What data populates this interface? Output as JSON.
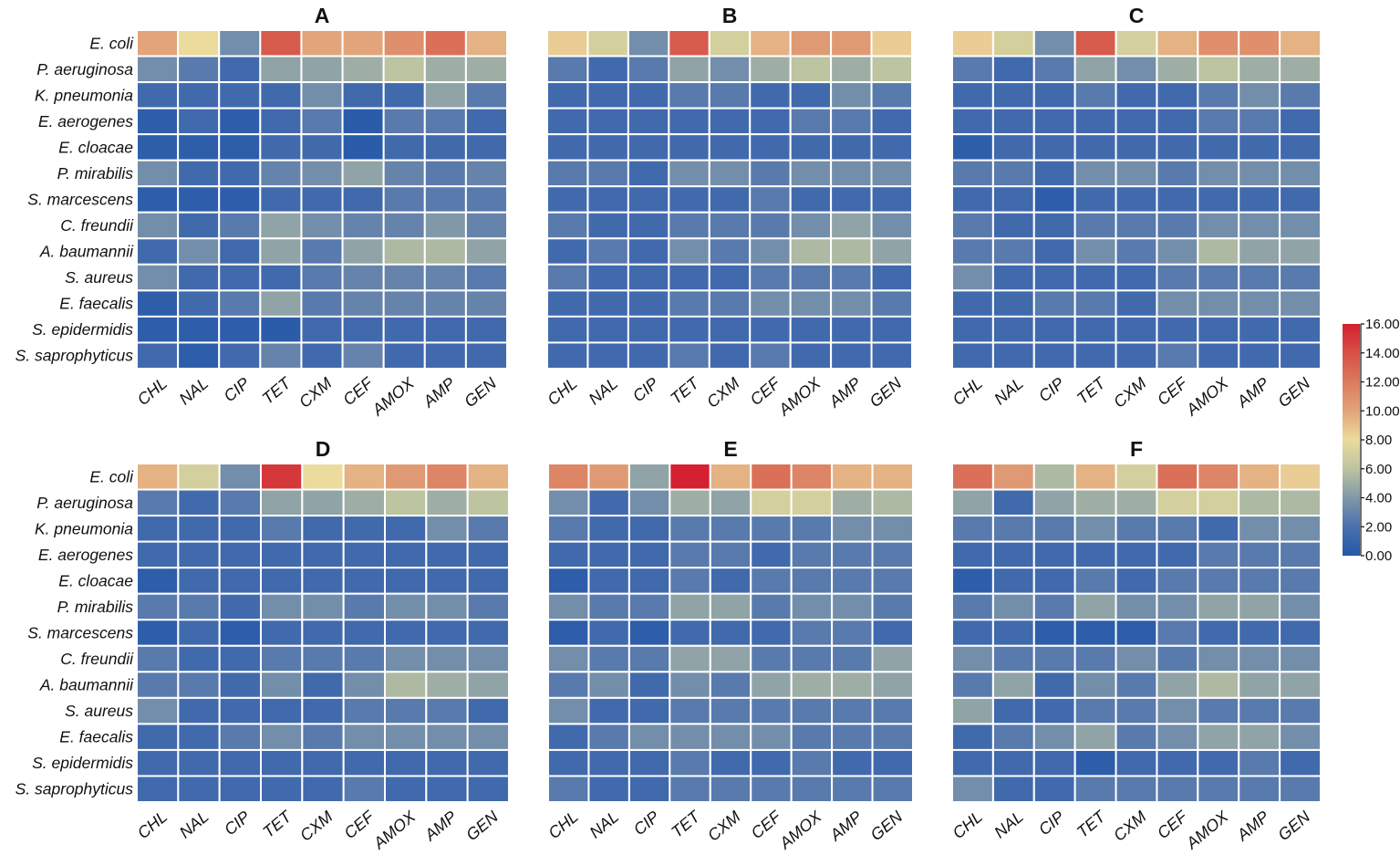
{
  "chart_data": {
    "type": "heatmap",
    "rows": [
      "E. coli",
      "P. aeruginosa",
      "K. pneumonia",
      "E. aerogenes",
      "E. cloacae",
      "P. mirabilis",
      "S. marcescens",
      "C. freundii",
      "A. baumannii",
      "S. aureus",
      "E. faecalis",
      "S. epidermidis",
      "S. saprophyticus"
    ],
    "columns": [
      "CHL",
      "NAL",
      "CIP",
      "TET",
      "CXM",
      "CEF",
      "AMOX",
      "AMP",
      "GEN"
    ],
    "colorbar": {
      "range": [
        0,
        16
      ],
      "ticks": [
        "16.00",
        "14.00",
        "12.00",
        "10.00",
        "8.00",
        "6.00",
        "4.00",
        "2.00",
        "0.00"
      ],
      "colors": [
        "#2458a8",
        "#4a70ae",
        "#8198a8",
        "#bcc4a0",
        "#ebdb9c",
        "#e2a47a",
        "#db7a5e",
        "#d65046",
        "#d42030"
      ]
    },
    "panels": [
      {
        "title": "A",
        "values": [
          [
            10,
            8,
            3.5,
            13.5,
            10,
            10,
            11,
            12.5,
            9.5
          ],
          [
            3.5,
            2.5,
            1.5,
            4.5,
            4.5,
            5,
            6,
            5,
            5
          ],
          [
            1.5,
            1.5,
            1.5,
            1.5,
            3.5,
            1.5,
            1.5,
            4.5,
            2.5
          ],
          [
            0.5,
            1.5,
            0.5,
            1.5,
            2.5,
            0.3,
            2.5,
            2.5,
            1.5
          ],
          [
            0.5,
            0.5,
            0.5,
            1.5,
            1.5,
            0.3,
            1.5,
            1.5,
            1.5
          ],
          [
            3.5,
            1.5,
            1.5,
            3,
            3.5,
            4.5,
            3,
            2.5,
            3
          ],
          [
            0.5,
            0.5,
            0.5,
            1.5,
            1.5,
            1.5,
            2.5,
            2.5,
            2.5
          ],
          [
            3.5,
            1.5,
            2.5,
            4.5,
            3.5,
            3,
            3,
            4,
            3
          ],
          [
            1.5,
            3.5,
            1.5,
            4.5,
            2.5,
            4.5,
            5.5,
            5.5,
            4.5
          ],
          [
            3.5,
            1.5,
            1.5,
            1.5,
            2.5,
            3,
            3,
            3,
            2.5
          ],
          [
            0.5,
            1.5,
            2.5,
            4.5,
            2.5,
            3,
            3,
            3,
            3
          ],
          [
            0.5,
            0.5,
            0.5,
            0.3,
            1.5,
            1.5,
            1.5,
            1.5,
            1.5
          ],
          [
            1.5,
            0.5,
            1.5,
            3,
            1.5,
            3,
            1.5,
            1.5,
            1.5
          ]
        ]
      },
      {
        "title": "B",
        "values": [
          [
            8.5,
            7,
            3.5,
            13.5,
            7,
            9.5,
            10.5,
            10.5,
            8.5
          ],
          [
            2.5,
            1.5,
            2.5,
            4.5,
            3.5,
            5,
            6,
            5,
            6
          ],
          [
            1.5,
            1.5,
            1.5,
            2.5,
            2.5,
            1.5,
            1.5,
            3.5,
            2.5
          ],
          [
            1.5,
            1.5,
            1.5,
            1.5,
            1.5,
            1.5,
            2.5,
            2.5,
            1.5
          ],
          [
            1.5,
            1.5,
            1.5,
            1.5,
            1.5,
            1.5,
            1.5,
            1.5,
            1.5
          ],
          [
            2.5,
            2.5,
            1.5,
            3.5,
            3.5,
            2.5,
            3.5,
            3.5,
            3.5
          ],
          [
            1.5,
            1.5,
            1.5,
            1.5,
            1.5,
            2.5,
            1.5,
            1.5,
            1.5
          ],
          [
            2.5,
            1.5,
            1.5,
            2.5,
            2.5,
            2.5,
            3.5,
            4.5,
            3.5
          ],
          [
            1.5,
            2.5,
            1.5,
            3.5,
            2.5,
            3.5,
            5.5,
            5.5,
            4.5
          ],
          [
            2.5,
            1.5,
            1.5,
            1.5,
            1.5,
            2.5,
            2.5,
            2.5,
            1.5
          ],
          [
            1.5,
            1.5,
            1.5,
            2.5,
            2.5,
            3.5,
            3.5,
            3.5,
            2.5
          ],
          [
            1.5,
            1.5,
            1.5,
            1.5,
            1.5,
            1.5,
            1.5,
            1.5,
            1.5
          ],
          [
            1.5,
            1.5,
            1.5,
            2.5,
            1.5,
            2.5,
            1.5,
            1.5,
            1.5
          ]
        ]
      },
      {
        "title": "C",
        "values": [
          [
            8.5,
            7,
            3.5,
            13.5,
            7,
            9.5,
            11,
            11,
            9.5
          ],
          [
            2.5,
            1.5,
            2.5,
            4.5,
            3.5,
            5,
            6,
            5,
            5
          ],
          [
            1.5,
            1.5,
            1.5,
            2.5,
            1.5,
            1.5,
            2.5,
            3.5,
            2.5
          ],
          [
            1.5,
            1.5,
            1.5,
            1.5,
            1.5,
            1.5,
            2.5,
            2.5,
            1.5
          ],
          [
            0.5,
            1.5,
            1.5,
            1.5,
            1.5,
            1.5,
            1.5,
            1.5,
            1.5
          ],
          [
            2.5,
            2.5,
            1.5,
            3.5,
            3.5,
            2.5,
            3.5,
            3.5,
            3.5
          ],
          [
            1.5,
            1.5,
            0.5,
            1.5,
            1.5,
            1.5,
            1.5,
            1.5,
            1.5
          ],
          [
            2.5,
            1.5,
            1.5,
            2.5,
            2.5,
            2.5,
            3.5,
            3.5,
            3.5
          ],
          [
            2.5,
            2.5,
            1.5,
            3.5,
            2.5,
            3.5,
            5.5,
            4.5,
            4.5
          ],
          [
            3.5,
            1.5,
            1.5,
            1.5,
            1.5,
            2.5,
            2.5,
            2.5,
            2.5
          ],
          [
            1.5,
            1.5,
            2.5,
            2.5,
            1.5,
            3.5,
            3.5,
            3.5,
            3.5
          ],
          [
            1.5,
            1.5,
            1.5,
            1.5,
            1.5,
            1.5,
            1.5,
            1.5,
            1.5
          ],
          [
            1.5,
            1.5,
            1.5,
            1.5,
            1.5,
            2.5,
            1.5,
            1.5,
            1.5
          ]
        ]
      },
      {
        "title": "D",
        "values": [
          [
            9.5,
            7,
            3.5,
            15,
            8,
            9.5,
            10.5,
            11.5,
            9.5
          ],
          [
            2.5,
            1.5,
            2.5,
            4.5,
            4.5,
            5,
            6,
            5,
            6
          ],
          [
            1.5,
            1.5,
            1.5,
            2.5,
            1.5,
            1.5,
            1.5,
            3.5,
            2.5
          ],
          [
            1.5,
            1.5,
            1.5,
            1.5,
            1.5,
            1.5,
            1.5,
            1.5,
            1.5
          ],
          [
            0.5,
            1.5,
            1.5,
            1.5,
            1.5,
            1.5,
            1.5,
            1.5,
            1.5
          ],
          [
            2.5,
            2.5,
            1.5,
            3.5,
            3.5,
            2.5,
            3.5,
            3.5,
            2.5
          ],
          [
            0.5,
            1.5,
            0.5,
            1.5,
            1.5,
            1.5,
            1.5,
            1.5,
            1.5
          ],
          [
            2.5,
            1.5,
            1.5,
            2.5,
            2.5,
            2.5,
            3.5,
            3.5,
            3.5
          ],
          [
            2.5,
            2.5,
            1.5,
            3.5,
            1.5,
            3.5,
            5.5,
            5,
            4.5
          ],
          [
            3.5,
            1.5,
            1.5,
            1.5,
            1.5,
            2.5,
            2.5,
            2.5,
            1.5
          ],
          [
            1.5,
            1.5,
            2.5,
            3.5,
            2.5,
            3.5,
            3.5,
            3.5,
            3.5
          ],
          [
            1.5,
            1.5,
            1.5,
            1.5,
            1.5,
            1.5,
            1.5,
            1.5,
            1.5
          ],
          [
            1.5,
            1.5,
            1.5,
            1.5,
            1.5,
            2.5,
            1.5,
            1.5,
            1.5
          ]
        ]
      },
      {
        "title": "E",
        "values": [
          [
            11.5,
            10.5,
            4.5,
            16,
            9.5,
            12.5,
            11.5,
            9.5,
            9.5
          ],
          [
            3.5,
            1.5,
            3.5,
            5,
            4.5,
            7,
            7,
            5,
            5.5
          ],
          [
            2.5,
            1.5,
            1.5,
            2.5,
            2.5,
            2.5,
            2.5,
            3.5,
            3.5
          ],
          [
            1.5,
            1.5,
            1.5,
            2.5,
            2.5,
            1.5,
            2.5,
            2.5,
            2.5
          ],
          [
            0.5,
            1.5,
            1.5,
            2.5,
            1.5,
            2.5,
            2.5,
            2.5,
            2.5
          ],
          [
            3.5,
            2.5,
            2.5,
            4.5,
            4.5,
            2.5,
            3.5,
            3.5,
            2.5
          ],
          [
            0.5,
            1.5,
            0.5,
            1.5,
            1.5,
            1.5,
            2.5,
            2.5,
            1.5
          ],
          [
            3.5,
            2.5,
            2.5,
            4.5,
            4.5,
            2.5,
            2.5,
            2.5,
            4.5
          ],
          [
            2.5,
            3.5,
            1.5,
            3.5,
            2.5,
            4.5,
            5,
            5,
            4.5
          ],
          [
            3.5,
            1.5,
            1.5,
            2.5,
            2.5,
            2.5,
            2.5,
            2.5,
            2.5
          ],
          [
            1.5,
            2.5,
            3.5,
            3.5,
            3.5,
            3.5,
            2.5,
            2.5,
            2.5
          ],
          [
            1.5,
            1.5,
            1.5,
            2.5,
            1.5,
            1.5,
            2.5,
            1.5,
            1.5
          ],
          [
            2.5,
            1.5,
            1.5,
            2.5,
            2.5,
            2.5,
            2.5,
            2.5,
            2.5
          ]
        ]
      },
      {
        "title": "F",
        "values": [
          [
            12.5,
            10.5,
            5.5,
            9.5,
            7,
            12.5,
            11.5,
            9.5,
            8.5
          ],
          [
            4.5,
            1.5,
            4.5,
            5,
            5,
            7,
            7,
            5.5,
            5.5
          ],
          [
            2.5,
            2.5,
            2.5,
            3.5,
            2.5,
            2.5,
            1.5,
            3.5,
            3.5
          ],
          [
            1.5,
            1.5,
            1.5,
            1.5,
            1.5,
            1.5,
            2.5,
            2.5,
            2.5
          ],
          [
            0.5,
            1.5,
            1.5,
            2.5,
            1.5,
            2.5,
            2.5,
            2.5,
            2.5
          ],
          [
            2.5,
            3.5,
            2.5,
            4.5,
            3.5,
            3.5,
            4.5,
            4.5,
            3.5
          ],
          [
            1.5,
            1.5,
            0.5,
            0.5,
            0.5,
            2.5,
            1.5,
            1.5,
            1.5
          ],
          [
            3.5,
            2.5,
            2.5,
            2.5,
            3.5,
            2.5,
            3.5,
            3.5,
            3.5
          ],
          [
            2.5,
            4.5,
            1.5,
            3.5,
            2.5,
            4.5,
            5.5,
            4.5,
            4.5
          ],
          [
            4.5,
            1.5,
            1.5,
            2.5,
            2.5,
            3.5,
            2.5,
            2.5,
            2.5
          ],
          [
            1.5,
            2.5,
            3.5,
            4.5,
            2.5,
            3.5,
            4.5,
            4.5,
            3.5
          ],
          [
            1.5,
            1.5,
            1.5,
            0.5,
            1.5,
            1.5,
            1.5,
            2.5,
            1.5
          ],
          [
            3.5,
            1.5,
            1.5,
            2.5,
            2.5,
            2.5,
            2.5,
            2.5,
            2.5
          ]
        ]
      }
    ]
  }
}
